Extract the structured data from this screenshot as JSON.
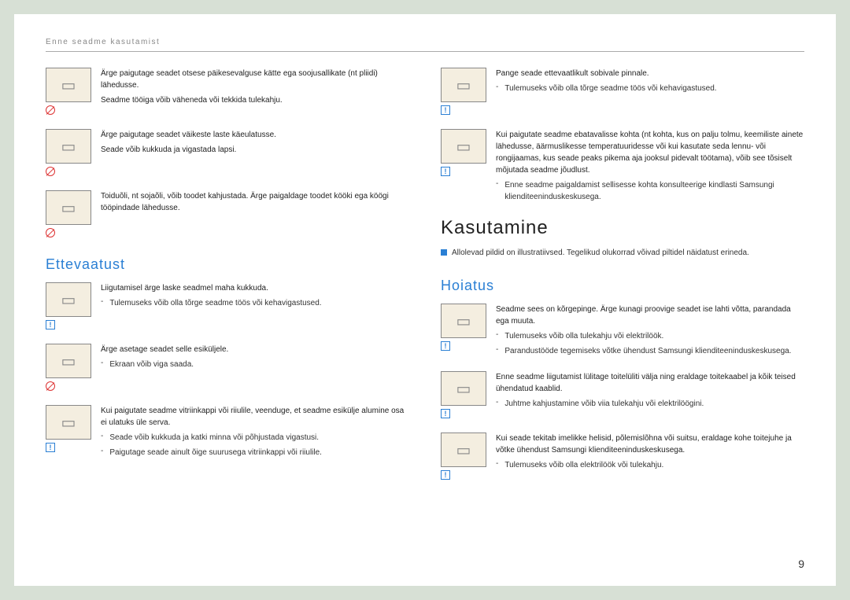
{
  "header": "Enne seadme kasutamist",
  "page_number": "9",
  "colors": {
    "accent": "#2a7fd4",
    "prohibit": "#d33",
    "icon_bg": "#f4eee0"
  },
  "left": {
    "items_top": [
      {
        "badge": "prohibit",
        "paras": [
          "Ärge paigutage seadet otsese päikesevalguse kätte ega soojusallikate (nt pliidi) lähedusse.",
          "Seadme tööiga võib väheneda või tekkida tulekahju."
        ],
        "bullets": []
      },
      {
        "badge": "prohibit",
        "paras": [
          "Ärge paigutage seadet väikeste laste käeulatusse.",
          "Seade võib kukkuda ja vigastada lapsi."
        ],
        "bullets": []
      },
      {
        "badge": "prohibit",
        "paras": [
          "Toiduõli, nt sojaõli, võib toodet kahjustada. Ärge paigaldage toodet kööki ega köögi tööpindade lähedusse."
        ],
        "bullets": []
      }
    ],
    "h2": "Ettevaatust",
    "items_bottom": [
      {
        "badge": "info",
        "paras": [
          "Liigutamisel ärge laske seadmel maha kukkuda."
        ],
        "bullets": [
          "Tulemuseks võib olla tõrge seadme töös või kehavigastused."
        ]
      },
      {
        "badge": "prohibit",
        "paras": [
          "Ärge asetage seadet selle esiküljele."
        ],
        "bullets": [
          "Ekraan võib viga saada."
        ]
      },
      {
        "badge": "info",
        "paras": [
          "Kui paigutate seadme vitriinkappi või riiulile, veenduge, et seadme esikülje alumine osa ei ulatuks üle serva."
        ],
        "bullets": [
          "Seade võib kukkuda ja katki minna või põhjustada vigastusi.",
          "Paigutage seade ainult õige suurusega vitriinkappi või riiulile."
        ]
      }
    ]
  },
  "right": {
    "items_top": [
      {
        "badge": "info",
        "paras": [
          "Pange seade ettevaatlikult sobivale pinnale."
        ],
        "bullets": [
          "Tulemuseks võib olla tõrge seadme töös või kehavigastused."
        ]
      },
      {
        "badge": "info",
        "paras": [
          "Kui paigutate seadme ebatavalisse kohta (nt kohta, kus on palju tolmu, keemiliste ainete lähedusse, äärmuslikesse temperatuuridesse või kui kasutate seda lennu- või rongijaamas, kus seade peaks pikema aja jooksul pidevalt töötama), võib see tõsiselt mõjutada seadme jõudlust."
        ],
        "bullets": [
          "Enne seadme paigaldamist sellisesse kohta konsulteerige kindlasti Samsungi klienditeeninduskeskusega."
        ]
      }
    ],
    "h1": "Kasutamine",
    "subheading": "Allolevad pildid on illustratiivsed. Tegelikud olukorrad võivad piltidel näidatust erineda.",
    "h2": "Hoiatus",
    "items_bottom": [
      {
        "badge": "info",
        "paras": [
          "Seadme sees on kõrgepinge. Ärge kunagi proovige seadet ise lahti võtta, parandada ega muuta."
        ],
        "bullets": [
          "Tulemuseks võib olla tulekahju või elektrilöök.",
          "Parandustööde tegemiseks võtke ühendust Samsungi klienditeeninduskeskusega."
        ]
      },
      {
        "badge": "info",
        "paras": [
          "Enne seadme liigutamist lülitage toitelüliti välja ning eraldage toitekaabel ja kõik teised ühendatud kaablid."
        ],
        "bullets": [
          "Juhtme kahjustamine võib viia tulekahju või elektrilöögini."
        ]
      },
      {
        "badge": "info",
        "paras": [
          "Kui seade tekitab imelikke helisid, põlemislõhna või suitsu, eraldage kohe toitejuhe ja võtke ühendust Samsungi klienditeeninduskeskusega."
        ],
        "bullets": [
          "Tulemuseks võib olla elektrilöök või tulekahju."
        ]
      }
    ]
  }
}
